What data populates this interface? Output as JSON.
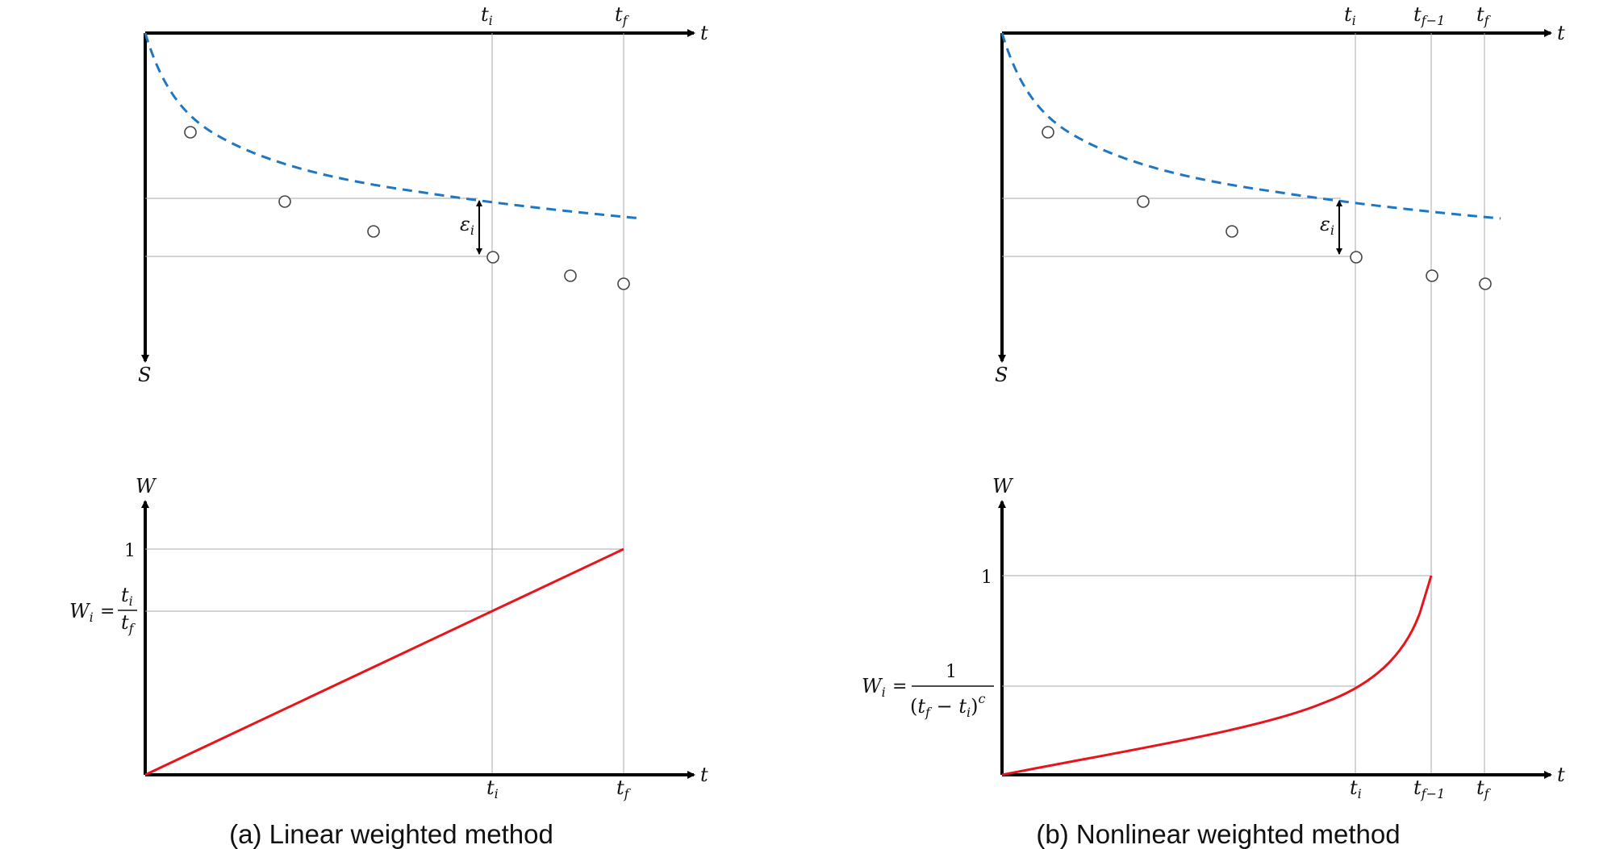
{
  "panel_a": {
    "caption": "(a)  Linear  weighted  method",
    "top_axis_label": "t",
    "s_axis_label": "S",
    "tick_ti_top": "t",
    "tick_ti_top_sub": "i",
    "tick_tf_top": "t",
    "tick_tf_top_sub": "f",
    "error_label": "ε",
    "error_label_sub": "i",
    "w_axis_label": "W",
    "bottom_axis_label": "t",
    "w_one_label": "1",
    "formula_lhs": "W",
    "formula_lhs_sub": "i",
    "formula_eq": "=",
    "formula_num": "t",
    "formula_num_sub": "i",
    "formula_den": "t",
    "formula_den_sub": "f",
    "tick_ti_bottom": "t",
    "tick_ti_bottom_sub": "i",
    "tick_tf_bottom": "t",
    "tick_tf_bottom_sub": "f"
  },
  "panel_b": {
    "caption": "(b)  Nonlinear  weighted  method",
    "top_axis_label": "t",
    "s_axis_label": "S",
    "tick_ti_top": "t",
    "tick_ti_top_sub": "i",
    "tick_tf1_top": "t",
    "tick_tf1_top_sub": "f−1",
    "tick_tf_top": "t",
    "tick_tf_top_sub": "f",
    "error_label": "ε",
    "error_label_sub": "i",
    "w_axis_label": "W",
    "bottom_axis_label": "t",
    "w_one_label": "1",
    "formula_lhs": "W",
    "formula_lhs_sub": "i",
    "formula_eq": "=",
    "formula_num": "1",
    "formula_den_open": "(",
    "formula_den_t1": "t",
    "formula_den_t1_sub": "f",
    "formula_den_minus": " − ",
    "formula_den_t2": "t",
    "formula_den_t2_sub": "i",
    "formula_den_close": ")",
    "formula_den_exp": "c",
    "tick_ti_bottom": "t",
    "tick_ti_bottom_sub": "i",
    "tick_tf1_bottom": "t",
    "tick_tf1_bottom_sub": "f−1",
    "tick_tf_bottom": "t",
    "tick_tf_bottom_sub": "f"
  },
  "colors": {
    "fit_curve": "#1f77c4",
    "weight_curve": "#e8141b",
    "axes": "#000000",
    "guides": "#a8a8a8"
  }
}
